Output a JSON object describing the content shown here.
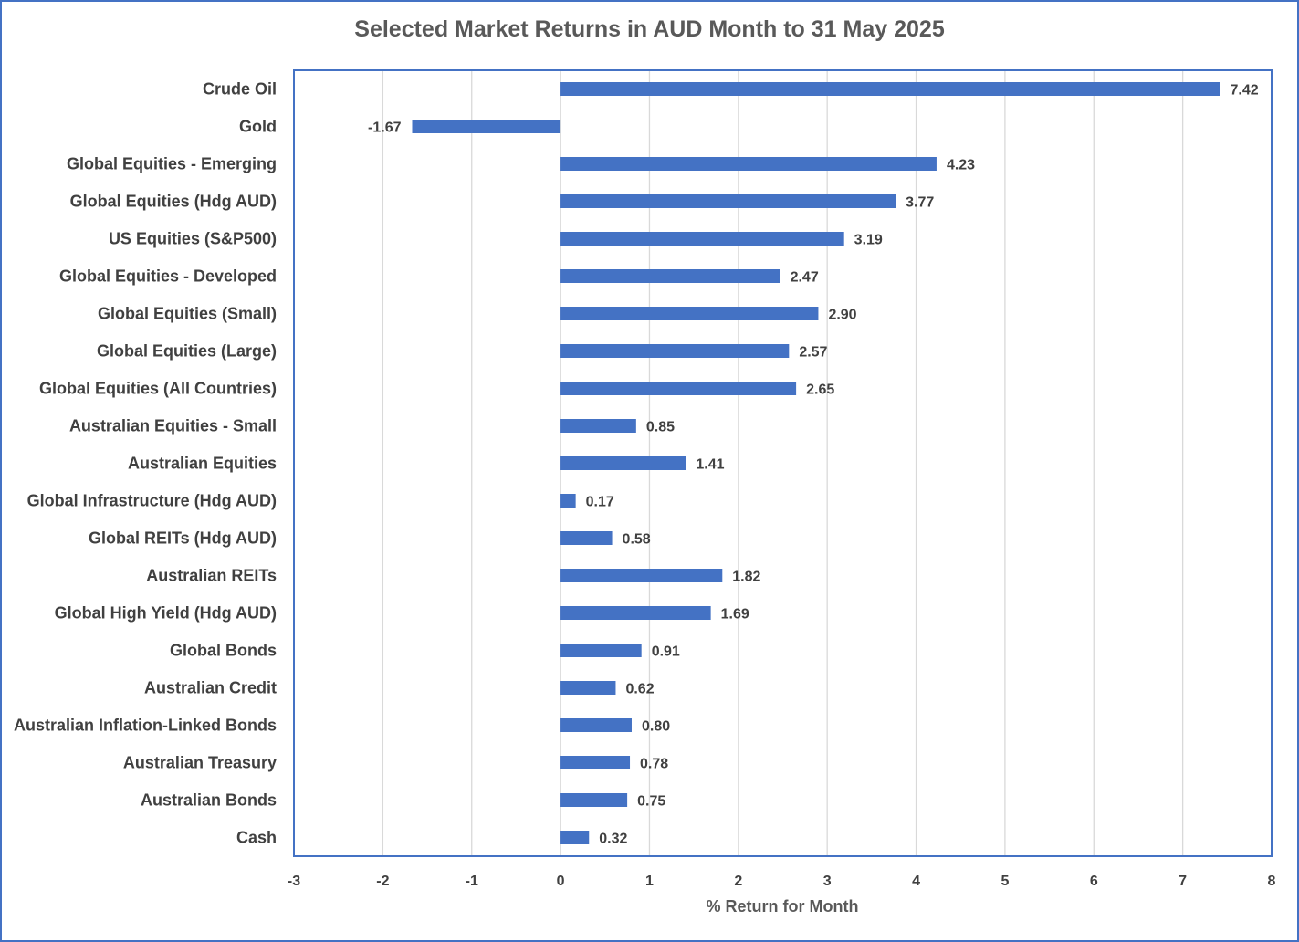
{
  "chart_data": {
    "type": "bar",
    "orientation": "horizontal",
    "title": "Selected Market Returns in AUD Month to 31 May 2025",
    "xlabel": "% Return for Month",
    "ylabel": "",
    "xlim": [
      -3,
      8
    ],
    "xticks": [
      -3,
      -2,
      -1,
      0,
      1,
      2,
      3,
      4,
      5,
      6,
      7,
      8
    ],
    "grid": "vertical",
    "legend": "none",
    "bar_color": "#4472C4",
    "categories": [
      "Crude Oil",
      "Gold",
      "Global Equities - Emerging",
      "Global Equities (Hdg AUD)",
      "US Equities (S&P500)",
      "Global Equities - Developed",
      "Global Equities (Small)",
      "Global Equities (Large)",
      "Global Equities (All Countries)",
      "Australian Equities - Small",
      "Australian Equities",
      "Global Infrastructure (Hdg AUD)",
      "Global REITs (Hdg AUD)",
      "Australian REITs",
      "Global High Yield (Hdg AUD)",
      "Global Bonds",
      "Australian Credit",
      "Australian Inflation-Linked Bonds",
      "Australian Treasury",
      "Australian Bonds",
      "Cash"
    ],
    "values": [
      7.42,
      -1.67,
      4.23,
      3.77,
      3.19,
      2.47,
      2.9,
      2.57,
      2.65,
      0.85,
      1.41,
      0.17,
      0.58,
      1.82,
      1.69,
      0.91,
      0.62,
      0.8,
      0.78,
      0.75,
      0.32
    ],
    "data_labels": [
      "7.42",
      "-1.67",
      "4.23",
      "3.77",
      "3.19",
      "2.47",
      "2.90",
      "2.57",
      "2.65",
      "0.85",
      "1.41",
      "0.17",
      "0.58",
      "1.82",
      "1.69",
      "0.91",
      "0.62",
      "0.80",
      "0.78",
      "0.75",
      "0.32"
    ]
  }
}
